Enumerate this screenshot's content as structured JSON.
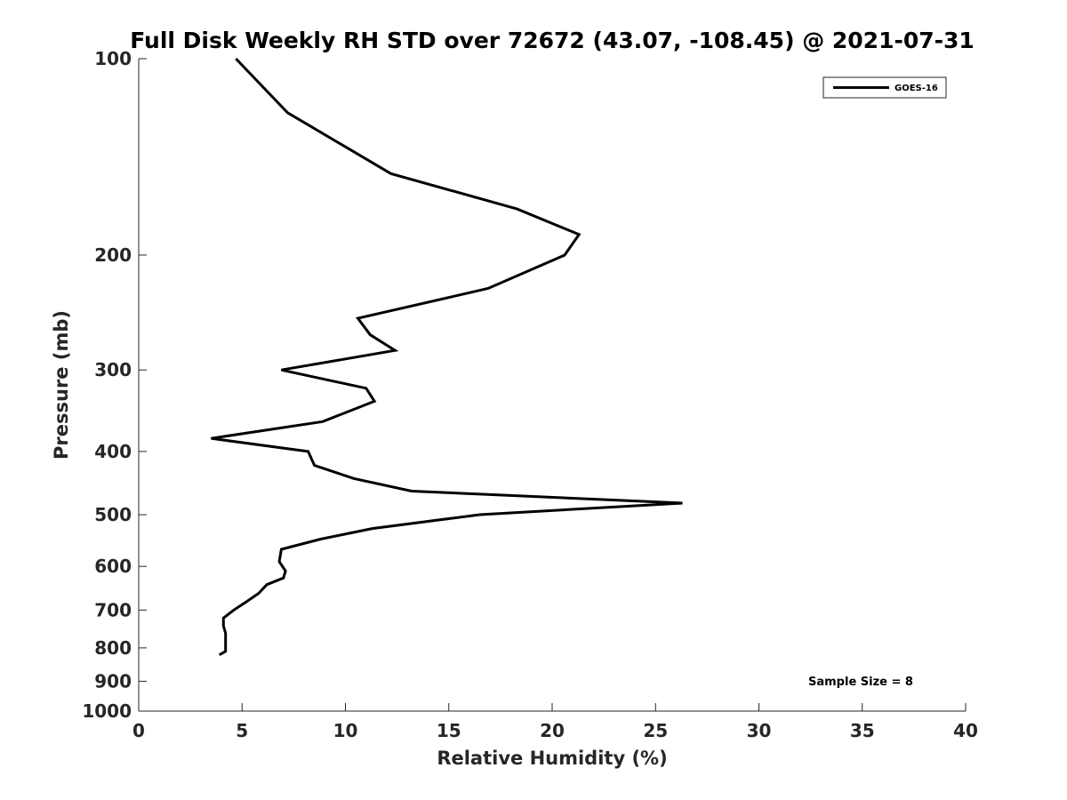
{
  "chart_data": {
    "type": "line",
    "title": "Full Disk Weekly RH STD over 72672 (43.07, -108.45) @ 2021-07-31",
    "xlabel": "Relative Humidity (%)",
    "ylabel": "Pressure (mb)",
    "xlim": [
      0,
      40
    ],
    "ylim": [
      100,
      1000
    ],
    "yscale": "log",
    "y_reversed": true,
    "grid": false,
    "legend_position": "top-right",
    "x_ticks": [
      0,
      5,
      10,
      15,
      20,
      25,
      30,
      35,
      40
    ],
    "x_tick_labels": [
      "0",
      "5",
      "10",
      "15",
      "20",
      "25",
      "30",
      "35",
      "40"
    ],
    "y_ticks": [
      100,
      200,
      300,
      400,
      500,
      600,
      700,
      800,
      900,
      1000
    ],
    "y_tick_labels": [
      "100",
      "200",
      "300",
      "400",
      "500",
      "600",
      "700",
      "800",
      "900",
      "1000"
    ],
    "annotation": "Sample Size = 8",
    "line_color": "#000000",
    "series": [
      {
        "name": "GOES-16",
        "x": [
          4.7,
          7.2,
          12.2,
          18.3,
          21.3,
          20.6,
          16.9,
          10.6,
          11.2,
          12.4,
          6.9,
          11.0,
          11.4,
          8.9,
          3.5,
          8.2,
          8.5,
          10.4,
          13.2,
          26.3,
          16.5,
          11.3,
          8.8,
          6.9,
          6.8,
          7.1,
          7.0,
          6.2,
          5.8,
          5.2,
          4.6,
          4.1,
          4.1,
          4.2,
          4.2,
          4.2,
          4.2,
          3.9
        ],
        "y": [
          100,
          121,
          150,
          170,
          186,
          200,
          225,
          250,
          265,
          280,
          300,
          320,
          335,
          360,
          382,
          400,
          420,
          440,
          460,
          480,
          500,
          525,
          545,
          565,
          590,
          610,
          625,
          640,
          660,
          680,
          700,
          720,
          740,
          760,
          780,
          800,
          810,
          820
        ]
      }
    ]
  }
}
